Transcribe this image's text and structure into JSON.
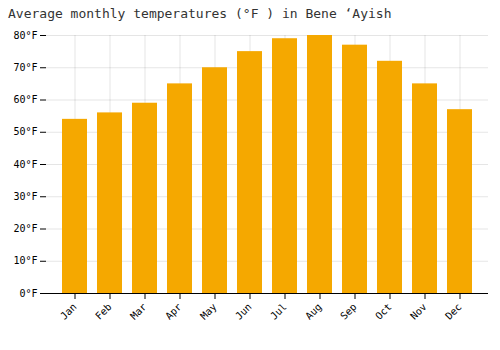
{
  "chart_data": {
    "type": "bar",
    "title": "Average monthly temperatures (°F ) in Bene ‘Ayish",
    "categories": [
      "Jan",
      "Feb",
      "Mar",
      "Apr",
      "May",
      "Jun",
      "Jul",
      "Aug",
      "Sep",
      "Oct",
      "Nov",
      "Dec"
    ],
    "values": [
      54,
      56,
      59,
      65,
      70,
      75,
      79,
      80,
      77,
      72,
      65,
      57
    ],
    "color": "#F5A800",
    "ylim": [
      0,
      80
    ],
    "yticks": [
      {
        "value": 0,
        "label": "0°F"
      },
      {
        "value": 10,
        "label": "10°F"
      },
      {
        "value": 20,
        "label": "20°F"
      },
      {
        "value": 30,
        "label": "30°F"
      },
      {
        "value": 40,
        "label": "40°F"
      },
      {
        "value": 50,
        "label": "50°F"
      },
      {
        "value": 60,
        "label": "60°F"
      },
      {
        "value": 70,
        "label": "70°F"
      },
      {
        "value": 80,
        "label": "80°F"
      }
    ],
    "grid": true
  }
}
